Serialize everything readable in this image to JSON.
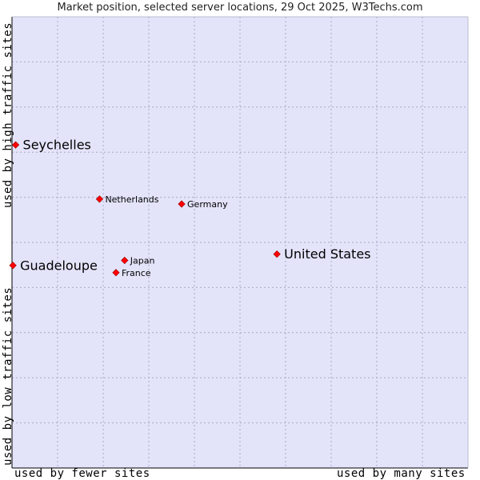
{
  "chart_data": {
    "type": "scatter",
    "title": "Market position, selected server locations, 29 Oct 2025, W3Techs.com",
    "xlabel_low": "used by fewer sites",
    "xlabel_high": "used by many sites",
    "ylabel_low": "used by low traffic sites",
    "ylabel_high": "used by high traffic sites",
    "xlim": [
      0,
      100
    ],
    "ylim": [
      0,
      100
    ],
    "grid": true,
    "colors": {
      "plot_background": "#e3e4fa",
      "grid": "#a8a8c8",
      "marker": "#ff0000",
      "axis": "#000000"
    },
    "points": [
      {
        "label": "Seychelles",
        "x": 0.8,
        "y": 71.6,
        "emphasis": true
      },
      {
        "label": "Netherlands",
        "x": 19.2,
        "y": 59.6,
        "emphasis": false
      },
      {
        "label": "Germany",
        "x": 37.2,
        "y": 58.5,
        "emphasis": false
      },
      {
        "label": "United States",
        "x": 58.1,
        "y": 47.4,
        "emphasis": true
      },
      {
        "label": "Guadeloupe",
        "x": 0.2,
        "y": 44.9,
        "emphasis": true
      },
      {
        "label": "Japan",
        "x": 24.7,
        "y": 46.0,
        "emphasis": false
      },
      {
        "label": "France",
        "x": 22.8,
        "y": 43.3,
        "emphasis": false
      }
    ]
  }
}
